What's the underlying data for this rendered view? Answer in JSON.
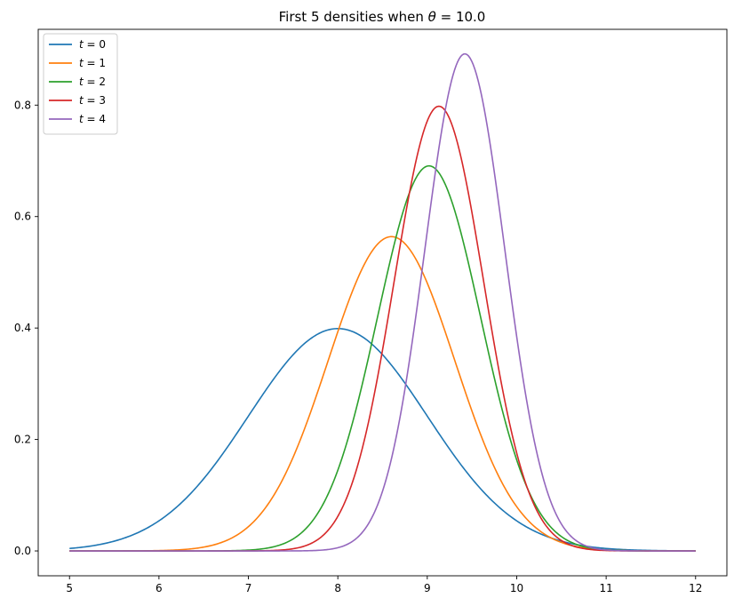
{
  "chart_data": {
    "type": "line",
    "title": "First 5 densities when θ = 10.0",
    "xlabel": "",
    "ylabel": "",
    "xlim": [
      4.65,
      12.35
    ],
    "ylim": [
      -0.0446,
      0.936
    ],
    "xticks": [
      5,
      6,
      7,
      8,
      9,
      10,
      11,
      12
    ],
    "yticks": [
      0.0,
      0.2,
      0.4,
      0.6,
      0.8
    ],
    "ytick_labels": [
      "0.0",
      "0.2",
      "0.4",
      "0.6",
      "0.8"
    ],
    "grid": false,
    "legend": "top-left",
    "series": [
      {
        "name": "t = 0",
        "label_var": "t",
        "label_val": "0",
        "color": "#1f77b4",
        "mu": 8.0,
        "sigma": 1.0,
        "peak": 0.399
      },
      {
        "name": "t = 1",
        "label_var": "t",
        "label_val": "1",
        "color": "#ff7f0e",
        "mu": 8.6,
        "sigma": 0.707,
        "peak": 0.564
      },
      {
        "name": "t = 2",
        "label_var": "t",
        "label_val": "2",
        "color": "#2ca02c",
        "mu": 9.02,
        "sigma": 0.577,
        "peak": 0.691
      },
      {
        "name": "t = 3",
        "label_var": "t",
        "label_val": "3",
        "color": "#d62728",
        "mu": 9.13,
        "sigma": 0.5,
        "peak": 0.798
      },
      {
        "name": "t = 4",
        "label_var": "t",
        "label_val": "4",
        "color": "#9467bd",
        "mu": 9.42,
        "sigma": 0.447,
        "peak": 0.892
      }
    ],
    "x_range": [
      5,
      12
    ]
  }
}
